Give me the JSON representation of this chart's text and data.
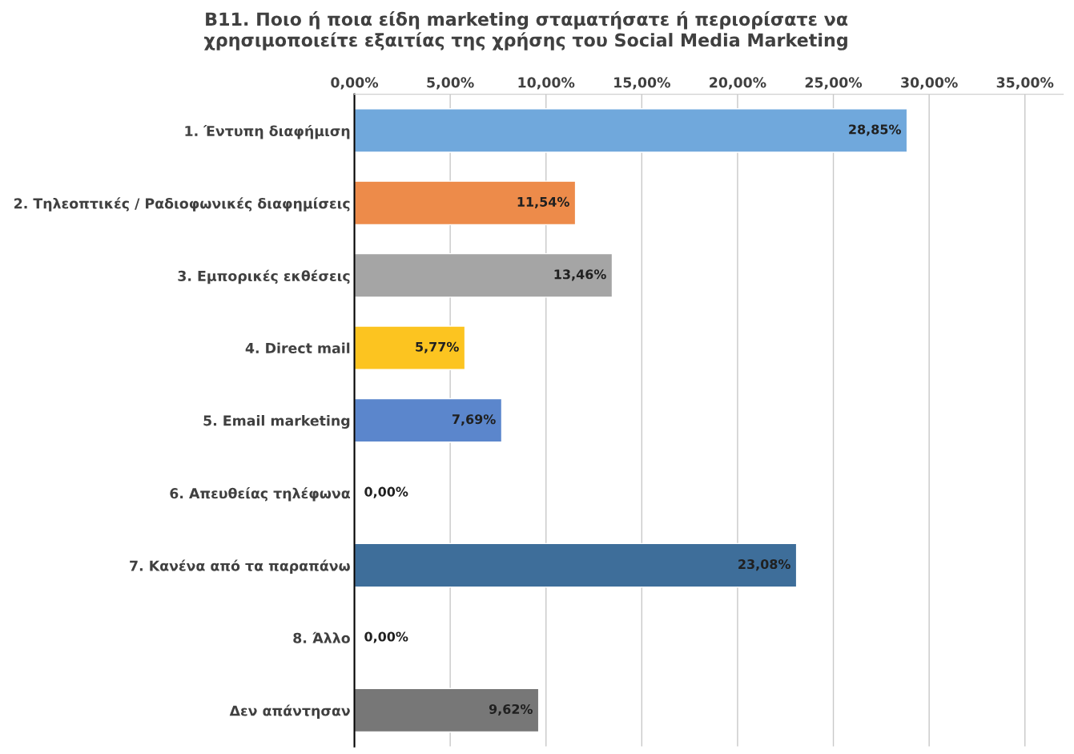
{
  "chart_data": {
    "type": "bar",
    "orientation": "horizontal",
    "title": "B11. Ποιο ή ποια είδη marketing σταματήσατε ή περιορίσατε να\nχρησιμοποιείτε εξαιτίας της χρήσης του Social Media Marketing",
    "categories": [
      "1. Έντυπη διαφήμιση",
      "2. Τηλεοπτικές / Ραδιοφωνικές διαφημίσεις",
      "3. Εμπορικές εκθέσεις",
      "4. Direct mail",
      "5. Email marketing",
      "6. Απευθείας τηλέφωνα",
      "7. Κανένα από τα παραπάνω",
      "8. Άλλο",
      "Δεν απάντησαν"
    ],
    "values": [
      28.85,
      11.54,
      13.46,
      5.77,
      7.69,
      0,
      23.08,
      0,
      9.62
    ],
    "value_labels": [
      "28,85%",
      "11,54%",
      "13,46%",
      "5,77%",
      "7,69%",
      "0,00%",
      "23,08%",
      "0,00%",
      "9,62%"
    ],
    "colors": [
      "#70a8dc",
      "#ed8b4a",
      "#a5a5a5",
      "#fcc420",
      "#5b86cc",
      null,
      "#3e6e9a",
      null,
      "#777777"
    ],
    "xlim": [
      0,
      37
    ],
    "xticks": [
      {
        "value": 0,
        "label": "0,00%"
      },
      {
        "value": 5,
        "label": "5,00%"
      },
      {
        "value": 10,
        "label": "10,00%"
      },
      {
        "value": 15,
        "label": "15,00%"
      },
      {
        "value": 20,
        "label": "20,00%"
      },
      {
        "value": 25,
        "label": "25,00%"
      },
      {
        "value": 30,
        "label": "30,00%"
      },
      {
        "value": 35,
        "label": "35,00%"
      }
    ],
    "grid": "x",
    "legend": false
  }
}
